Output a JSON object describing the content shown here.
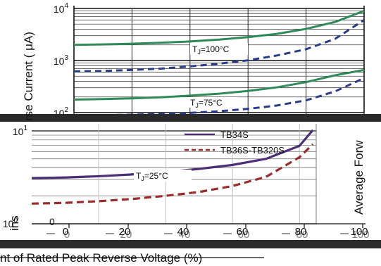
{
  "chart_data": [
    {
      "type": "line",
      "y_scale": "log",
      "ylim": [
        100,
        10000
      ],
      "xlim": [
        0,
        100
      ],
      "ylabel": "rse Current ( μA)",
      "y_ticks": [
        {
          "value": 100,
          "base": "10",
          "exp": "2"
        },
        {
          "value": 1000,
          "base": "10",
          "exp": "3"
        },
        {
          "value": 10000,
          "base": "10",
          "exp": "4"
        }
      ],
      "annotations": [
        {
          "label": "T",
          "sub": "J",
          "rest": "=100°C"
        },
        {
          "label": "T",
          "sub": "J",
          "rest": "=75°C"
        }
      ],
      "series": [
        {
          "style": "solid",
          "color": "#2e8b57",
          "x": [
            0,
            10,
            20,
            30,
            40,
            50,
            60,
            70,
            80,
            90,
            100
          ],
          "y": [
            2000,
            2040,
            2100,
            2190,
            2330,
            2520,
            2810,
            3250,
            4050,
            5500,
            9000
          ]
        },
        {
          "style": "dashed",
          "color": "#283c8c",
          "x": [
            0,
            10,
            20,
            30,
            40,
            50,
            60,
            70,
            80,
            90,
            100
          ],
          "y": [
            620,
            630,
            660,
            700,
            770,
            870,
            1010,
            1250,
            1650,
            2600,
            6000
          ]
        },
        {
          "style": "solid",
          "color": "#2e8b57",
          "x": [
            0,
            10,
            20,
            30,
            40,
            50,
            60,
            70,
            80,
            90,
            100
          ],
          "y": [
            178,
            182,
            188,
            197,
            212,
            231,
            260,
            306,
            385,
            520,
            660
          ]
        },
        {
          "style": "dashed",
          "color": "#283c8c",
          "x": [
            0,
            10,
            20,
            30,
            40,
            50,
            60,
            70,
            80,
            90,
            100
          ],
          "y": [
            88,
            89,
            91,
            94,
            99,
            106,
            118,
            137,
            172,
            255,
            460
          ]
        }
      ]
    },
    {
      "type": "line",
      "y_scale": "log",
      "ylim": [
        1,
        10
      ],
      "xlim": [
        0,
        85
      ],
      "xlabel": "nt of Rated Peak Reverse Voltage (%)",
      "x_ticks": [
        "0",
        "20",
        "40",
        "60",
        "80",
        "100"
      ],
      "x_ticks_ghost": [
        "0",
        "20",
        "40",
        "60",
        "80",
        "100"
      ],
      "y_ticks": [
        {
          "value": 10,
          "base": "10",
          "exp": "1"
        },
        {
          "value": 1,
          "base": "10",
          "exp": "0"
        }
      ],
      "annotations": [
        {
          "label": "T",
          "sub": "J",
          "rest": "=25°C"
        }
      ],
      "series": [
        {
          "name": "TB34S",
          "style": "solid",
          "color": "#4b2d78",
          "x": [
            0,
            10,
            20,
            30,
            40,
            50,
            60,
            70,
            80,
            84
          ],
          "y": [
            3.1,
            3.15,
            3.25,
            3.4,
            3.6,
            3.9,
            4.3,
            5.0,
            6.9,
            10.2
          ]
        },
        {
          "name": "TB36S-TB320S",
          "style": "dashed",
          "color": "#9b2a2a",
          "x": [
            0,
            10,
            20,
            30,
            40,
            50,
            60,
            70,
            80,
            84
          ],
          "y": [
            1.65,
            1.68,
            1.75,
            1.85,
            2.0,
            2.2,
            2.55,
            3.2,
            5.2,
            7.2
          ]
        }
      ]
    }
  ],
  "ghost_labels": {
    "rotated_right": "Average Forw",
    "left_fragment": "ins",
    "left_fragment_top": "rse",
    "left_tick_top": "0"
  }
}
